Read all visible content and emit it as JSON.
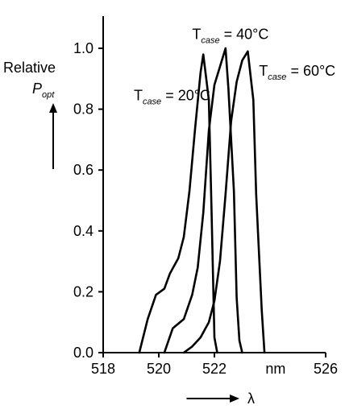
{
  "chart_data": {
    "type": "line",
    "title": "",
    "xlabel": "λ",
    "x_unit_label": "nm",
    "ylabel": {
      "line1": "Relative",
      "symbol": "P",
      "subscript": "opt"
    },
    "xlim": [
      518,
      526
    ],
    "ylim": [
      0.0,
      1.0
    ],
    "x_ticks": [
      518,
      520,
      522,
      526
    ],
    "x_tick_labels": [
      "518",
      "520",
      "522",
      "526"
    ],
    "y_ticks": [
      0.0,
      0.2,
      0.4,
      0.6,
      0.8,
      1.0
    ],
    "y_tick_labels": [
      "0.0",
      "0.2",
      "0.4",
      "0.6",
      "0.8",
      "1.0"
    ],
    "series": [
      {
        "name": "Tcase = 20°C",
        "annotation": {
          "prefix": "T",
          "sub": "case",
          "suffix": " = 20°C"
        },
        "x": [
          519.3,
          519.6,
          519.9,
          520.2,
          520.4,
          520.7,
          520.9,
          521.1,
          521.3,
          521.5,
          521.6,
          521.8,
          521.9,
          522.0,
          522.1
        ],
        "y": [
          0.0,
          0.11,
          0.19,
          0.21,
          0.26,
          0.31,
          0.38,
          0.53,
          0.73,
          0.92,
          0.98,
          0.83,
          0.46,
          0.05,
          0.0
        ]
      },
      {
        "name": "Tcase = 40°C",
        "annotation": {
          "prefix": "T",
          "sub": "case",
          "suffix": " = 40°C"
        },
        "x": [
          520.2,
          520.5,
          520.9,
          521.2,
          521.4,
          521.6,
          521.8,
          522.0,
          522.2,
          522.4,
          522.5,
          522.7,
          522.8,
          522.9,
          523.0
        ],
        "y": [
          0.0,
          0.08,
          0.11,
          0.19,
          0.28,
          0.46,
          0.73,
          0.88,
          0.94,
          1.0,
          0.87,
          0.53,
          0.18,
          0.04,
          0.0
        ]
      },
      {
        "name": "Tcase = 60°C",
        "annotation": {
          "prefix": "T",
          "sub": "case",
          "suffix": " = 60°C"
        },
        "x": [
          520.9,
          521.2,
          521.5,
          521.8,
          522.0,
          522.2,
          522.4,
          522.6,
          522.8,
          523.0,
          523.2,
          523.4,
          523.5,
          523.7,
          523.8
        ],
        "y": [
          0.0,
          0.02,
          0.05,
          0.1,
          0.17,
          0.3,
          0.52,
          0.76,
          0.89,
          0.96,
          0.99,
          0.83,
          0.52,
          0.14,
          0.0
        ]
      }
    ]
  }
}
